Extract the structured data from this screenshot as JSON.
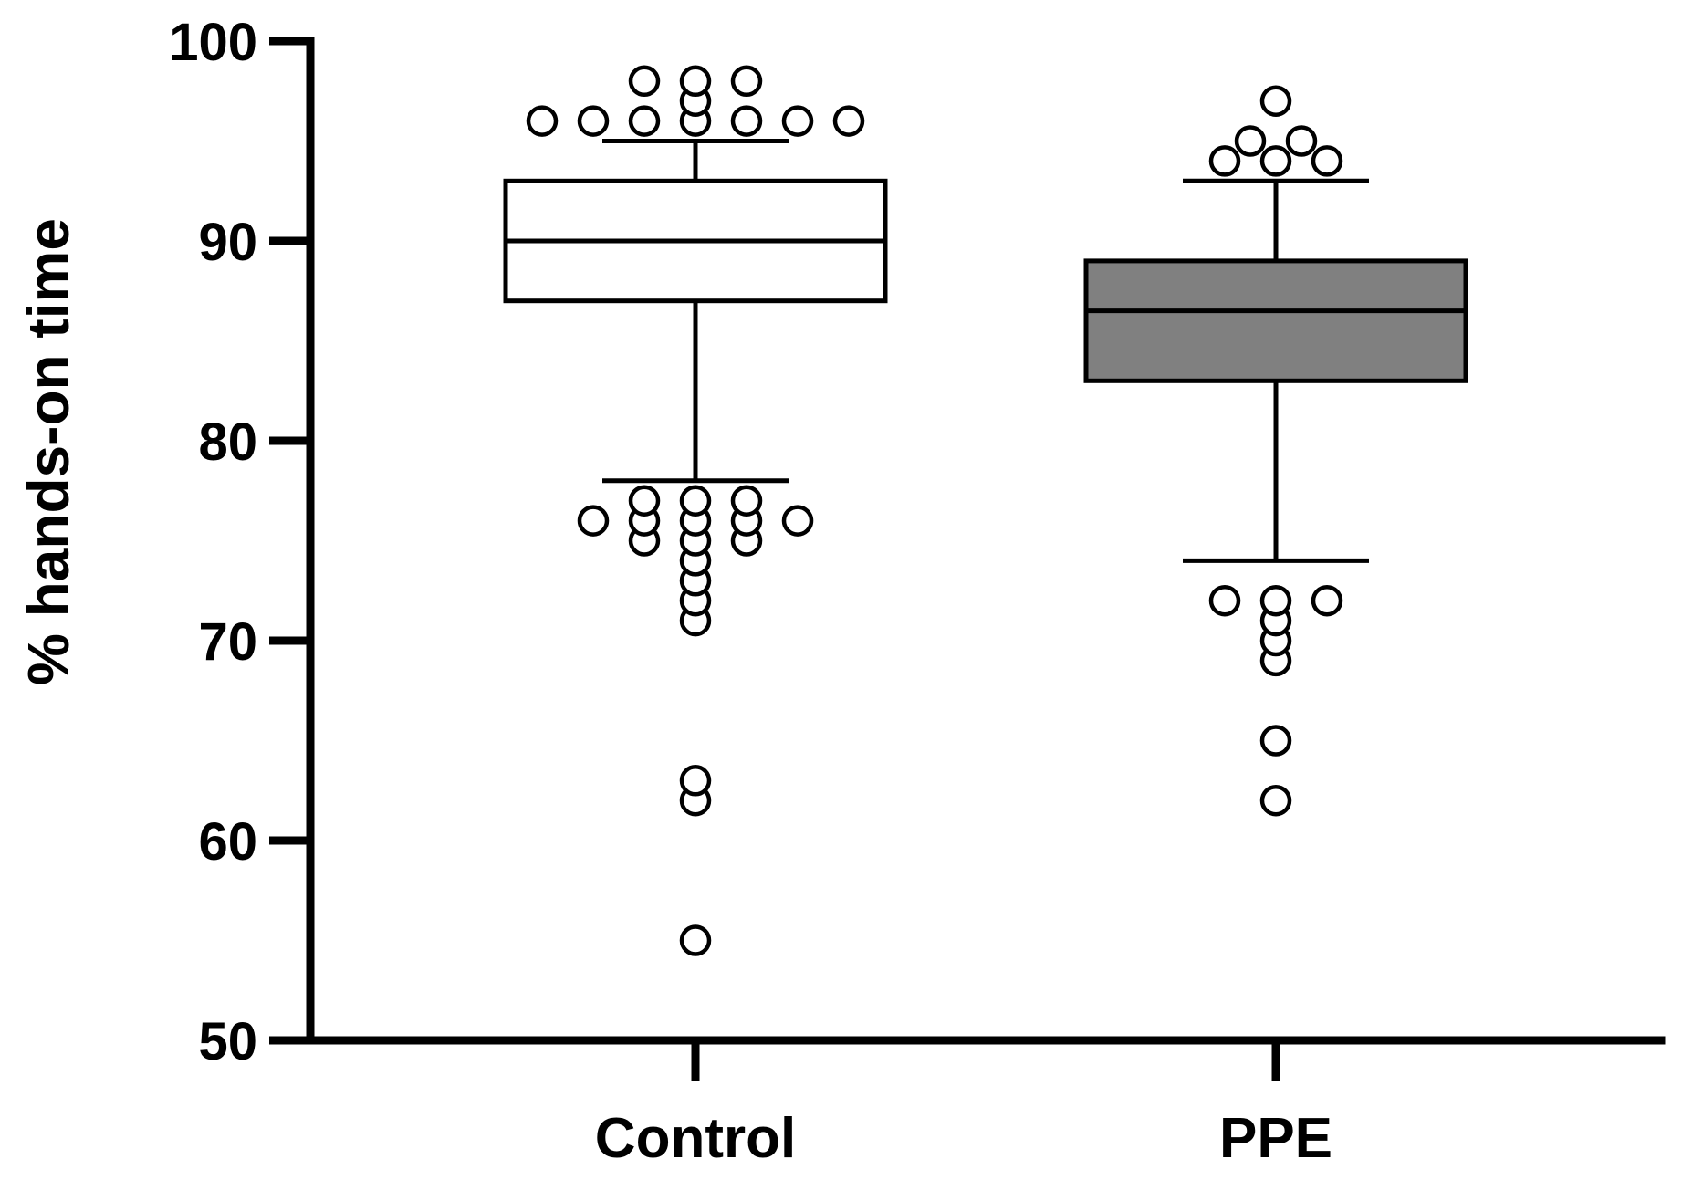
{
  "chart_data": {
    "type": "box",
    "title": "",
    "xlabel": "",
    "ylabel": "% hands-on time",
    "ylim": [
      50,
      100
    ],
    "yticks": [
      50,
      60,
      70,
      80,
      90,
      100
    ],
    "grid": false,
    "categories": [
      "Control",
      "PPE"
    ],
    "series": [
      {
        "category": "Control",
        "fill": "#ffffff",
        "q1": 87,
        "median": 90,
        "q3": 93,
        "whisker_low": 78,
        "whisker_high": 95,
        "outliers": [
          98,
          98,
          98,
          97,
          96,
          96,
          96,
          96,
          96,
          96,
          96,
          77,
          77,
          77,
          76,
          76,
          76,
          76,
          76,
          75,
          75,
          75,
          74,
          73,
          72,
          71,
          63,
          62,
          55
        ]
      },
      {
        "category": "PPE",
        "fill": "#808080",
        "q1": 83,
        "median": 86.5,
        "q3": 89,
        "whisker_low": 74,
        "whisker_high": 93,
        "outliers": [
          97,
          95,
          95,
          94,
          94,
          94,
          72,
          72,
          72,
          71,
          70,
          69,
          65,
          62
        ]
      }
    ]
  }
}
